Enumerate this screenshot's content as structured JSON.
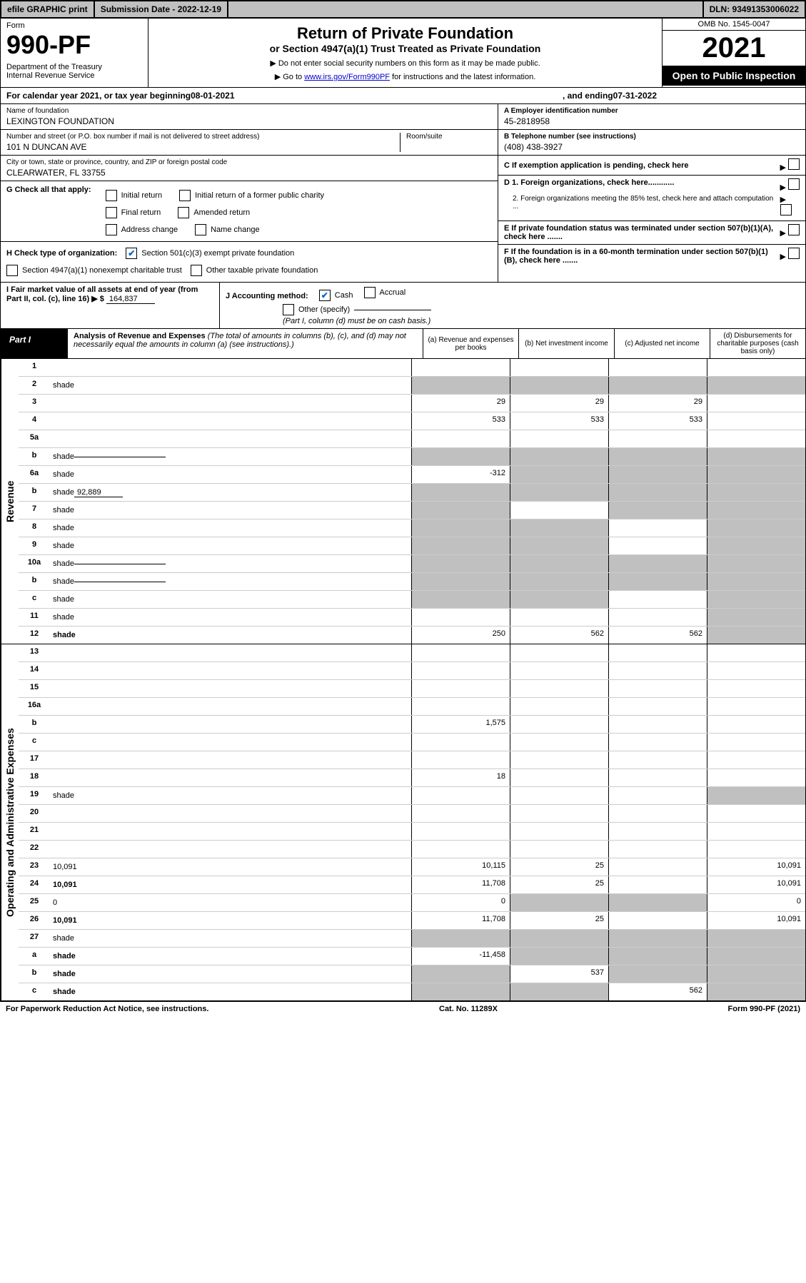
{
  "topBar": {
    "efile": "efile GRAPHIC print",
    "submission": "Submission Date - 2022-12-19",
    "dln": "DLN: 93491353006022"
  },
  "formHeader": {
    "formLabel": "Form",
    "formNumber": "990-PF",
    "dept": "Department of the Treasury",
    "irs": "Internal Revenue Service",
    "title": "Return of Private Foundation",
    "subtitle": "or Section 4947(a)(1) Trust Treated as Private Foundation",
    "inst1": "▶ Do not enter social security numbers on this form as it may be made public.",
    "inst2pre": "▶ Go to ",
    "inst2link": "www.irs.gov/Form990PF",
    "inst2post": " for instructions and the latest information.",
    "omb": "OMB No. 1545-0047",
    "year": "2021",
    "openPublic": "Open to Public Inspection"
  },
  "calYear": {
    "pre": "For calendar year 2021, or tax year beginning ",
    "begin": "08-01-2021",
    "mid": ", and ending ",
    "end": "07-31-2022"
  },
  "infoLeft": {
    "nameLabel": "Name of foundation",
    "name": "LEXINGTON FOUNDATION",
    "addrLabel": "Number and street (or P.O. box number if mail is not delivered to street address)",
    "roomLabel": "Room/suite",
    "addr": "101 N DUNCAN AVE",
    "cityLabel": "City or town, state or province, country, and ZIP or foreign postal code",
    "city": "CLEARWATER, FL  33755"
  },
  "infoRight": {
    "aLabel": "A Employer identification number",
    "aVal": "45-2818958",
    "bLabel": "B Telephone number (see instructions)",
    "bVal": "(408) 438-3927",
    "cLabel": "C If exemption application is pending, check here",
    "d1": "D 1. Foreign organizations, check here............",
    "d2": "2. Foreign organizations meeting the 85% test, check here and attach computation ...",
    "eLabel": "E  If private foundation status was terminated under section 507(b)(1)(A), check here .......",
    "fLabel": "F  If the foundation is in a 60-month termination under section 507(b)(1)(B), check here ......."
  },
  "gBlock": {
    "label": "G Check all that apply:",
    "opts": [
      "Initial return",
      "Initial return of a former public charity",
      "Final return",
      "Amended return",
      "Address change",
      "Name change"
    ]
  },
  "hBlock": {
    "label": "H Check type of organization:",
    "opt1": "Section 501(c)(3) exempt private foundation",
    "opt2": "Section 4947(a)(1) nonexempt charitable trust",
    "opt3": "Other taxable private foundation"
  },
  "iBlock": {
    "label": "I Fair market value of all assets at end of year (from Part II, col. (c), line 16) ▶ $",
    "val": "164,837"
  },
  "jBlock": {
    "label": "J Accounting method:",
    "cash": "Cash",
    "accrual": "Accrual",
    "other": "Other (specify)",
    "note": "(Part I, column (d) must be on cash basis.)"
  },
  "part1": {
    "label": "Part I",
    "title": "Analysis of Revenue and Expenses",
    "titleNote": "(The total of amounts in columns (b), (c), and (d) may not necessarily equal the amounts in column (a) (see instructions).)",
    "colA": "(a)  Revenue and expenses per books",
    "colB": "(b)  Net investment income",
    "colC": "(c)  Adjusted net income",
    "colD": "(d)  Disbursements for charitable purposes (cash basis only)"
  },
  "sideLabels": {
    "revenue": "Revenue",
    "expenses": "Operating and Administrative Expenses"
  },
  "rows": [
    {
      "n": "1",
      "d": "",
      "a": "",
      "b": "",
      "c": "",
      "shadeD": false
    },
    {
      "n": "2",
      "d": "shade",
      "a": "shade",
      "b": "shade",
      "c": "shade"
    },
    {
      "n": "3",
      "d": "",
      "a": "29",
      "b": "29",
      "c": "29"
    },
    {
      "n": "4",
      "d": "",
      "a": "533",
      "b": "533",
      "c": "533"
    },
    {
      "n": "5a",
      "d": "",
      "a": "",
      "b": "",
      "c": ""
    },
    {
      "n": "b",
      "d": "shade",
      "a": "shade",
      "b": "shade",
      "c": "shade",
      "hasInput": true
    },
    {
      "n": "6a",
      "d": "shade",
      "a": "-312",
      "b": "shade",
      "c": "shade"
    },
    {
      "n": "b",
      "d": "shade",
      "inputVal": "92,889",
      "a": "shade",
      "b": "shade",
      "c": "shade"
    },
    {
      "n": "7",
      "d": "shade",
      "a": "shade",
      "b": "",
      "c": "shade"
    },
    {
      "n": "8",
      "d": "shade",
      "a": "shade",
      "b": "shade",
      "c": ""
    },
    {
      "n": "9",
      "d": "shade",
      "a": "shade",
      "b": "shade",
      "c": ""
    },
    {
      "n": "10a",
      "d": "shade",
      "a": "shade",
      "b": "shade",
      "c": "shade",
      "hasInput": true
    },
    {
      "n": "b",
      "d": "shade",
      "a": "shade",
      "b": "shade",
      "c": "shade",
      "hasInput": true
    },
    {
      "n": "c",
      "d": "shade",
      "a": "shade",
      "b": "shade",
      "c": ""
    },
    {
      "n": "11",
      "d": "shade",
      "a": "",
      "b": "",
      "c": ""
    },
    {
      "n": "12",
      "d": "shade",
      "bold": true,
      "a": "250",
      "b": "562",
      "c": "562"
    }
  ],
  "expRows": [
    {
      "n": "13",
      "d": "",
      "a": "",
      "b": "",
      "c": ""
    },
    {
      "n": "14",
      "d": "",
      "a": "",
      "b": "",
      "c": ""
    },
    {
      "n": "15",
      "d": "",
      "a": "",
      "b": "",
      "c": ""
    },
    {
      "n": "16a",
      "d": "",
      "a": "",
      "b": "",
      "c": ""
    },
    {
      "n": "b",
      "d": "",
      "a": "1,575",
      "b": "",
      "c": ""
    },
    {
      "n": "c",
      "d": "",
      "a": "",
      "b": "",
      "c": ""
    },
    {
      "n": "17",
      "d": "",
      "a": "",
      "b": "",
      "c": ""
    },
    {
      "n": "18",
      "d": "",
      "a": "18",
      "b": "",
      "c": ""
    },
    {
      "n": "19",
      "d": "shade",
      "a": "",
      "b": "",
      "c": ""
    },
    {
      "n": "20",
      "d": "",
      "a": "",
      "b": "",
      "c": ""
    },
    {
      "n": "21",
      "d": "",
      "a": "",
      "b": "",
      "c": ""
    },
    {
      "n": "22",
      "d": "",
      "a": "",
      "b": "",
      "c": ""
    },
    {
      "n": "23",
      "d": "10,091",
      "a": "10,115",
      "b": "25",
      "c": ""
    },
    {
      "n": "24",
      "d": "10,091",
      "bold": true,
      "a": "11,708",
      "b": "25",
      "c": ""
    },
    {
      "n": "25",
      "d": "0",
      "a": "0",
      "b": "shade",
      "c": "shade"
    },
    {
      "n": "26",
      "d": "10,091",
      "bold": true,
      "a": "11,708",
      "b": "25",
      "c": ""
    },
    {
      "n": "27",
      "d": "shade",
      "a": "shade",
      "b": "shade",
      "c": "shade"
    },
    {
      "n": "a",
      "d": "shade",
      "bold": true,
      "a": "-11,458",
      "b": "shade",
      "c": "shade"
    },
    {
      "n": "b",
      "d": "shade",
      "bold": true,
      "a": "shade",
      "b": "537",
      "c": "shade"
    },
    {
      "n": "c",
      "d": "shade",
      "bold": true,
      "a": "shade",
      "b": "shade",
      "c": "562"
    }
  ],
  "footer": {
    "left": "For Paperwork Reduction Act Notice, see instructions.",
    "mid": "Cat. No. 11289X",
    "right": "Form 990-PF (2021)"
  }
}
